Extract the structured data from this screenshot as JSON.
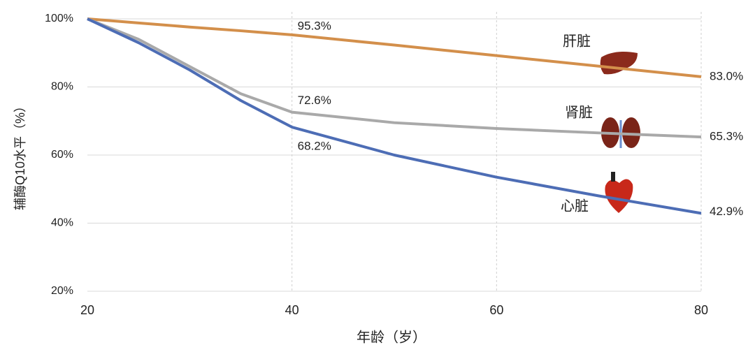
{
  "chart_data": {
    "type": "line",
    "x": [
      20,
      25,
      30,
      35,
      40,
      50,
      60,
      70,
      80
    ],
    "xlim": [
      20,
      80
    ],
    "xticks": [
      20,
      40,
      60,
      80
    ],
    "ylim": [
      20,
      100
    ],
    "yticks": [
      {
        "value": 20,
        "label": "20%"
      },
      {
        "value": 40,
        "label": "40%"
      },
      {
        "value": 60,
        "label": "60%"
      },
      {
        "value": 80,
        "label": "80%"
      },
      {
        "value": 100,
        "label": "100%"
      }
    ],
    "x_label": "年龄（岁）",
    "y_label": "辅酶Q10水平（%）",
    "grid": true,
    "series": [
      {
        "name": "肝脏",
        "color": "#d38f4b",
        "values": [
          100,
          98.8,
          97.6,
          96.5,
          95.3,
          92.3,
          89.2,
          86.1,
          83.0
        ],
        "value_labels": [
          null,
          null,
          null,
          null,
          "95.3%",
          null,
          null,
          null,
          "83.0%"
        ]
      },
      {
        "name": "肾脏",
        "color": "#a9a9a9",
        "values": [
          100,
          94,
          86,
          78,
          72.6,
          69.5,
          67.8,
          66.5,
          65.3
        ],
        "value_labels": [
          null,
          null,
          null,
          null,
          "72.6%",
          null,
          null,
          null,
          "65.3%"
        ]
      },
      {
        "name": "心脏",
        "color": "#4d6db5",
        "values": [
          100,
          93,
          85,
          76,
          68.2,
          60,
          53.5,
          48,
          42.9
        ],
        "value_labels": [
          null,
          null,
          null,
          null,
          "68.2%",
          null,
          null,
          null,
          "42.9%"
        ]
      }
    ]
  }
}
